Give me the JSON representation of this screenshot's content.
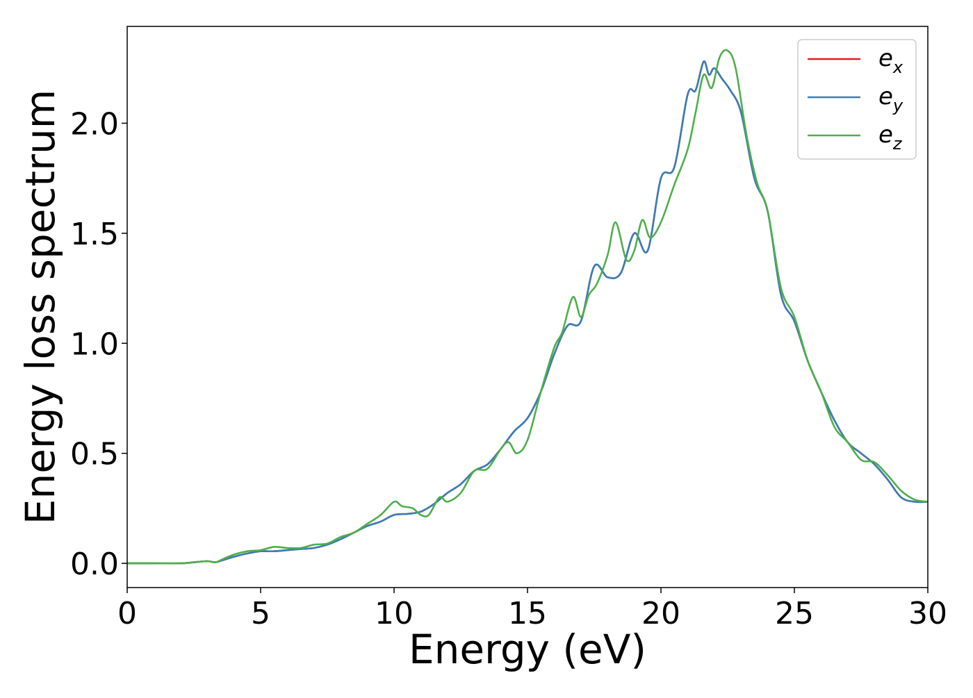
{
  "chart_data": {
    "type": "line",
    "title": "",
    "xlabel": "Energy (eV)",
    "ylabel": "Energy loss spectrum",
    "xlim": [
      0,
      30
    ],
    "ylim": [
      -0.11,
      2.44
    ],
    "xticks": [
      0,
      5,
      10,
      15,
      20,
      25,
      30
    ],
    "yticks": [
      0.0,
      0.5,
      1.0,
      1.5,
      2.0
    ],
    "xtick_labels": [
      "0",
      "5",
      "10",
      "15",
      "20",
      "25",
      "30"
    ],
    "ytick_labels": [
      "0.0",
      "0.5",
      "1.0",
      "1.5",
      "2.0"
    ],
    "grid": false,
    "legend_position": "top-right",
    "series": [
      {
        "name": "e_x",
        "label_main": "e",
        "label_sub": "x",
        "color": "#e41a1c",
        "x": [
          0,
          1,
          2,
          2.5,
          3,
          3.3,
          3.6,
          4,
          4.5,
          5,
          5.5,
          6,
          6.5,
          7,
          7.5,
          8,
          8.5,
          9,
          9.5,
          10,
          10.5,
          11,
          11.5,
          12,
          12.5,
          13,
          13.5,
          14,
          14.5,
          15,
          15.5,
          16,
          16.5,
          17,
          17.5,
          18,
          18.5,
          19,
          19.5,
          20,
          20.5,
          21,
          21.3,
          21.6,
          21.8,
          22,
          22.3,
          22.6,
          23,
          23.5,
          24,
          24.5,
          25,
          25.5,
          26,
          26.5,
          27,
          27.5,
          28,
          28.5,
          29,
          29.5,
          30
        ],
        "y": [
          0.0,
          0.0,
          0.0,
          0.005,
          0.01,
          0.005,
          0.015,
          0.03,
          0.045,
          0.055,
          0.055,
          0.06,
          0.065,
          0.07,
          0.085,
          0.11,
          0.14,
          0.17,
          0.19,
          0.22,
          0.225,
          0.235,
          0.27,
          0.32,
          0.36,
          0.42,
          0.45,
          0.52,
          0.6,
          0.66,
          0.78,
          0.95,
          1.08,
          1.1,
          1.35,
          1.3,
          1.32,
          1.5,
          1.42,
          1.75,
          1.8,
          2.13,
          2.15,
          2.28,
          2.22,
          2.25,
          2.2,
          2.15,
          2.05,
          1.75,
          1.6,
          1.22,
          1.1,
          0.92,
          0.78,
          0.65,
          0.55,
          0.5,
          0.45,
          0.38,
          0.3,
          0.28,
          0.28
        ]
      },
      {
        "name": "e_y",
        "label_main": "e",
        "label_sub": "y",
        "color": "#377eb8",
        "x": [
          0,
          1,
          2,
          2.5,
          3,
          3.3,
          3.6,
          4,
          4.5,
          5,
          5.5,
          6,
          6.5,
          7,
          7.5,
          8,
          8.5,
          9,
          9.5,
          10,
          10.5,
          11,
          11.5,
          12,
          12.5,
          13,
          13.5,
          14,
          14.5,
          15,
          15.5,
          16,
          16.5,
          17,
          17.5,
          18,
          18.5,
          19,
          19.5,
          20,
          20.5,
          21,
          21.3,
          21.6,
          21.8,
          22,
          22.3,
          22.6,
          23,
          23.5,
          24,
          24.5,
          25,
          25.5,
          26,
          26.5,
          27,
          27.5,
          28,
          28.5,
          29,
          29.5,
          30
        ],
        "y": [
          0.0,
          0.0,
          0.0,
          0.005,
          0.01,
          0.005,
          0.015,
          0.03,
          0.045,
          0.055,
          0.055,
          0.06,
          0.065,
          0.07,
          0.085,
          0.11,
          0.14,
          0.17,
          0.19,
          0.22,
          0.225,
          0.235,
          0.27,
          0.32,
          0.36,
          0.42,
          0.45,
          0.52,
          0.6,
          0.66,
          0.78,
          0.95,
          1.08,
          1.1,
          1.35,
          1.3,
          1.32,
          1.5,
          1.42,
          1.75,
          1.8,
          2.13,
          2.15,
          2.28,
          2.22,
          2.25,
          2.2,
          2.15,
          2.05,
          1.75,
          1.6,
          1.22,
          1.1,
          0.92,
          0.78,
          0.65,
          0.55,
          0.5,
          0.45,
          0.38,
          0.3,
          0.28,
          0.28
        ]
      },
      {
        "name": "e_z",
        "label_main": "e",
        "label_sub": "z",
        "color": "#4daf4a",
        "x": [
          0,
          1,
          2,
          2.5,
          3,
          3.3,
          3.6,
          4,
          4.5,
          5,
          5.5,
          6,
          6.5,
          7,
          7.5,
          8,
          8.5,
          9,
          9.5,
          10,
          10.3,
          10.7,
          11,
          11.3,
          11.7,
          12,
          12.5,
          13,
          13.5,
          14,
          14.3,
          14.6,
          15,
          15.5,
          16,
          16.3,
          16.7,
          17,
          17.3,
          17.6,
          18,
          18.3,
          18.7,
          19,
          19.3,
          19.6,
          20,
          20.5,
          21,
          21.3,
          21.6,
          21.9,
          22.2,
          22.5,
          22.8,
          23.2,
          23.6,
          24,
          24.5,
          25,
          25.5,
          26,
          26.5,
          27,
          27.5,
          28,
          28.5,
          29,
          29.5,
          30
        ],
        "y": [
          0.0,
          0.0,
          0.0,
          0.005,
          0.01,
          0.005,
          0.02,
          0.04,
          0.055,
          0.06,
          0.075,
          0.07,
          0.07,
          0.085,
          0.09,
          0.12,
          0.14,
          0.18,
          0.22,
          0.28,
          0.26,
          0.25,
          0.22,
          0.22,
          0.3,
          0.28,
          0.32,
          0.42,
          0.43,
          0.52,
          0.55,
          0.5,
          0.56,
          0.78,
          0.98,
          1.05,
          1.21,
          1.12,
          1.22,
          1.27,
          1.4,
          1.55,
          1.38,
          1.42,
          1.56,
          1.48,
          1.55,
          1.72,
          1.88,
          2.05,
          2.22,
          2.16,
          2.3,
          2.33,
          2.25,
          1.95,
          1.73,
          1.6,
          1.25,
          1.12,
          0.92,
          0.78,
          0.62,
          0.55,
          0.47,
          0.46,
          0.4,
          0.33,
          0.29,
          0.28
        ]
      }
    ]
  }
}
